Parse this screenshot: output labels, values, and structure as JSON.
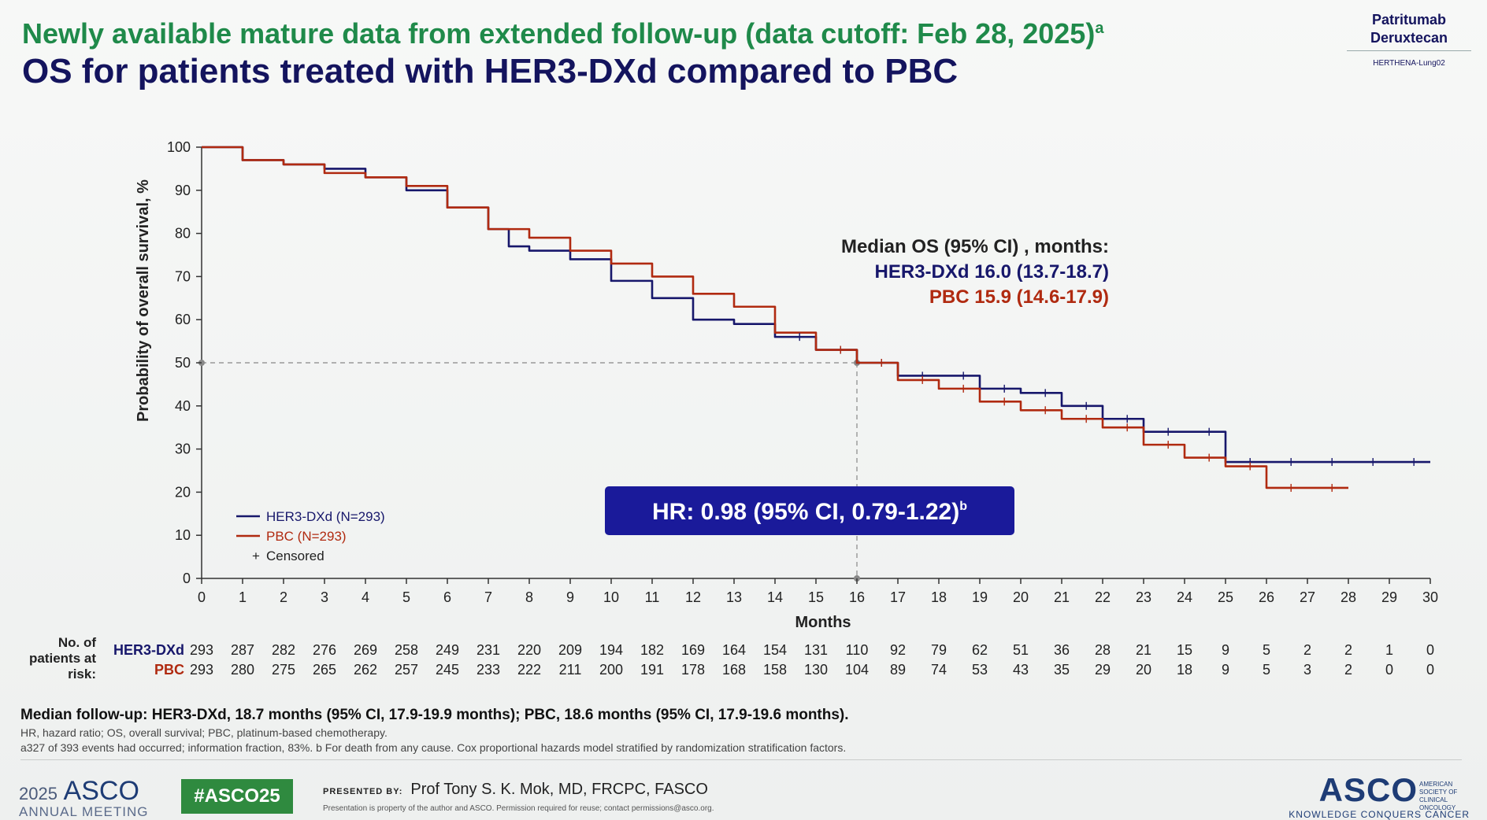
{
  "slide": {
    "subtitle": "Newly available mature data from extended follow-up (data cutoff: Feb 28, 2025)",
    "subtitle_sup": "a",
    "title": "OS for patients treated with HER3-DXd compared to PBC",
    "badge_line1": "Patritumab",
    "badge_line2": "Deruxtecan",
    "badge_sub": "HERTHENA-Lung02",
    "colors": {
      "her3": "#17176b",
      "pbc": "#b02a10",
      "accent_box": "#1a1a9a",
      "green": "#1f8a4a"
    }
  },
  "chart_data": {
    "type": "line",
    "subtype": "kaplan-meier",
    "title": "",
    "xlabel": "Months",
    "ylabel": "Probability of overall survival, %",
    "xlim": [
      0,
      30
    ],
    "ylim": [
      0,
      100
    ],
    "xticks": [
      "0",
      "1",
      "2",
      "3",
      "4",
      "5",
      "6",
      "7",
      "8",
      "9",
      "10",
      "11",
      "12",
      "13",
      "14",
      "15",
      "16",
      "17",
      "18",
      "19",
      "20",
      "21",
      "22",
      "23",
      "24",
      "25",
      "26",
      "27",
      "28",
      "29",
      "30"
    ],
    "yticks": [
      "0",
      "10",
      "20",
      "30",
      "40",
      "50",
      "60",
      "70",
      "80",
      "90",
      "100"
    ],
    "grid": false,
    "legend_position": "lower-left",
    "series": [
      {
        "name": "HER3-DXd (N=293)",
        "color": "#17176b",
        "x": [
          0,
          1,
          2,
          3,
          4,
          5,
          6,
          7,
          7.5,
          8,
          9,
          10,
          11,
          12,
          13,
          14,
          15,
          16,
          17,
          18,
          19,
          20,
          21,
          22,
          23,
          24,
          25,
          26,
          27,
          28,
          29,
          30
        ],
        "y": [
          100,
          97,
          96,
          95,
          93,
          90,
          86,
          81,
          77,
          76,
          74,
          69,
          65,
          60,
          59,
          56,
          53,
          50,
          47,
          47,
          44,
          43,
          40,
          37,
          34,
          34,
          27,
          27,
          27,
          27,
          27,
          27
        ]
      },
      {
        "name": "PBC (N=293)",
        "color": "#b02a10",
        "x": [
          0,
          1,
          2,
          3,
          4,
          5,
          6,
          7,
          8,
          9,
          10,
          11,
          12,
          13,
          14,
          15,
          16,
          17,
          18,
          19,
          20,
          21,
          22,
          23,
          24,
          25,
          26,
          27,
          28
        ],
        "y": [
          100,
          97,
          96,
          94,
          93,
          91,
          86,
          81,
          79,
          76,
          73,
          70,
          66,
          63,
          57,
          53,
          50,
          46,
          44,
          41,
          39,
          37,
          35,
          31,
          28,
          26,
          21,
          21,
          21
        ]
      }
    ],
    "censored_label": "Censored",
    "median_line": {
      "y": 50,
      "x": 16
    },
    "median_header": "Median OS (95% CI) , months:",
    "median_her3": "HER3-DXd 16.0 (13.7-18.7)",
    "median_pbc": "PBC 15.9 (14.6-17.9)",
    "hr_box": "HR: 0.98 (95% CI, 0.79-1.22)",
    "hr_sup": "b",
    "risk_table": {
      "header": [
        "No. of",
        "patients at",
        "risk:"
      ],
      "rows": [
        {
          "label": "HER3-DXd",
          "color": "#17176b",
          "values": [
            "293",
            "287",
            "282",
            "276",
            "269",
            "258",
            "249",
            "231",
            "220",
            "209",
            "194",
            "182",
            "169",
            "164",
            "154",
            "131",
            "110",
            "92",
            "79",
            "62",
            "51",
            "36",
            "28",
            "21",
            "15",
            "9",
            "5",
            "2",
            "2",
            "1",
            "0"
          ]
        },
        {
          "label": "PBC",
          "color": "#b02a10",
          "values": [
            "293",
            "280",
            "275",
            "265",
            "262",
            "257",
            "245",
            "233",
            "222",
            "211",
            "200",
            "191",
            "178",
            "168",
            "158",
            "130",
            "104",
            "89",
            "74",
            "53",
            "43",
            "35",
            "29",
            "20",
            "18",
            "9",
            "5",
            "3",
            "2",
            "0",
            "0"
          ]
        }
      ]
    }
  },
  "footnotes": {
    "main": "Median follow-up: HER3-DXd, 18.7 months (95% CI, 17.9-19.9 months); PBC, 18.6 months (95% CI, 17.9-19.6 months).",
    "abbrev": "HR, hazard ratio; OS, overall survival; PBC, platinum-based chemotherapy.",
    "note": "a327 of 393 events had occurred; information fraction, 83%. b For death from any cause. Cox proportional hazards model stratified by randomization stratification factors."
  },
  "footer": {
    "year": "2025",
    "brand": "ASCO",
    "meeting": "ANNUAL MEETING",
    "hashtag": "#ASCO25",
    "presented_label": "PRESENTED BY:",
    "presenter": "Prof Tony S. K. Mok, MD, FRCPC, FASCO",
    "property": "Presentation is property of the author and ASCO. Permission required for reuse; contact permissions@asco.org.",
    "logo": "ASCO",
    "society": "AMERICAN SOCIETY OF CLINICAL ONCOLOGY",
    "tagline": "KNOWLEDGE CONQUERS CANCER"
  }
}
